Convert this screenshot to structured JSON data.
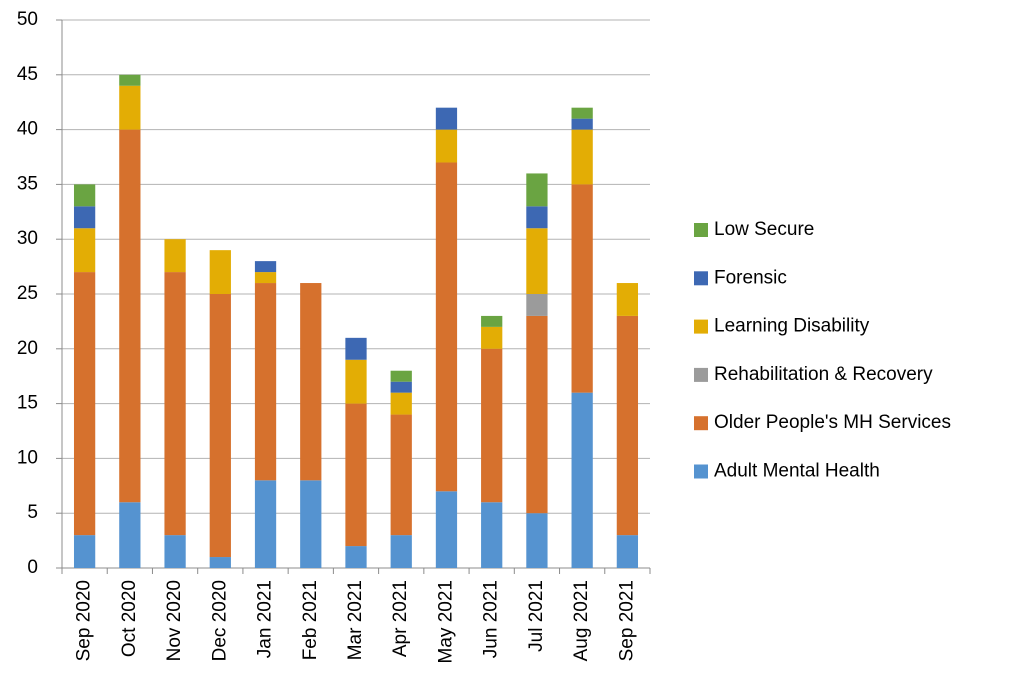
{
  "chart_data": {
    "type": "stacked_bar",
    "categories": [
      "Sep 2020",
      "Oct 2020",
      "Nov 2020",
      "Dec 2020",
      "Jan 2021",
      "Feb 2021",
      "Mar 2021",
      "Apr 2021",
      "May 2021",
      "Jun 2021",
      "Jul 2021",
      "Aug 2021",
      "Sep 2021"
    ],
    "series": [
      {
        "name": "Adult Mental Health",
        "color": "#5593d0",
        "values": [
          3,
          6,
          3,
          1,
          8,
          8,
          2,
          3,
          7,
          6,
          5,
          16,
          3
        ]
      },
      {
        "name": "Older People's MH Services",
        "color": "#d6712d",
        "values": [
          24,
          34,
          24,
          24,
          18,
          18,
          13,
          11,
          30,
          14,
          18,
          19,
          20
        ]
      },
      {
        "name": "Rehabilitation & Recovery",
        "color": "#9b9b9b",
        "values": [
          0,
          0,
          0,
          0,
          0,
          0,
          0,
          0,
          0,
          0,
          2,
          0,
          0
        ]
      },
      {
        "name": "Learning Disability",
        "color": "#e3ad05",
        "values": [
          4,
          4,
          3,
          4,
          1,
          0,
          4,
          2,
          3,
          2,
          6,
          5,
          3
        ]
      },
      {
        "name": "Forensic",
        "color": "#3d68b3",
        "values": [
          2,
          0,
          0,
          0,
          1,
          0,
          2,
          1,
          2,
          0,
          2,
          1,
          0
        ]
      },
      {
        "name": "Low Secure",
        "color": "#6aa442",
        "values": [
          2,
          1,
          0,
          0,
          0,
          0,
          0,
          1,
          0,
          1,
          3,
          1,
          0
        ]
      }
    ],
    "ylim": [
      0,
      50
    ],
    "yticks": [
      0,
      5,
      10,
      15,
      20,
      25,
      30,
      35,
      40,
      45,
      50
    ],
    "grid": true,
    "legend": "right"
  }
}
